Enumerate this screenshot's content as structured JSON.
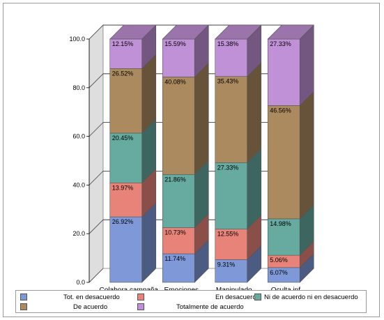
{
  "chart_data": {
    "type": "bar",
    "stacked": true,
    "categories": [
      "Colabora campaña",
      "Emociones",
      "Manipulado",
      "Oculta inf."
    ],
    "ylim": [
      0,
      100
    ],
    "yticks": [
      "0.0",
      "20.0",
      "40.0",
      "60.0",
      "80.0",
      "100.0"
    ],
    "grid": true,
    "legend_position": "bottom",
    "series": [
      {
        "name": "Tot. en desacuerdo",
        "color": "#7f98d8",
        "values": [
          26.92,
          11.74,
          9.31,
          6.07
        ],
        "labels": [
          "26.92%",
          "11.74%",
          "9.31%",
          "6.07%"
        ]
      },
      {
        "name": "En desacuerdo",
        "color": "#e8837a",
        "values": [
          13.97,
          10.73,
          12.55,
          5.06
        ],
        "labels": [
          "13.97%",
          "10.73%",
          "12.55%",
          "5.06%"
        ]
      },
      {
        "name": "Ni de acuerdo ni en desacuerdo",
        "color": "#66aaa0",
        "values": [
          20.45,
          21.86,
          27.33,
          14.98
        ],
        "labels": [
          "20.45%",
          "21.86%",
          "27.33%",
          "14.98%"
        ]
      },
      {
        "name": "De acuerdo",
        "color": "#ab8a5f",
        "values": [
          26.52,
          40.08,
          35.43,
          46.56
        ],
        "labels": [
          "26.52%",
          "40.08%",
          "35.43%",
          "46.56%"
        ]
      },
      {
        "name": "Totalmente de acuerdo",
        "color": "#c091d6",
        "values": [
          12.15,
          15.59,
          15.38,
          27.33
        ],
        "labels": [
          "12.15%",
          "15.59%",
          "15.38%",
          "27.33%"
        ]
      }
    ]
  }
}
